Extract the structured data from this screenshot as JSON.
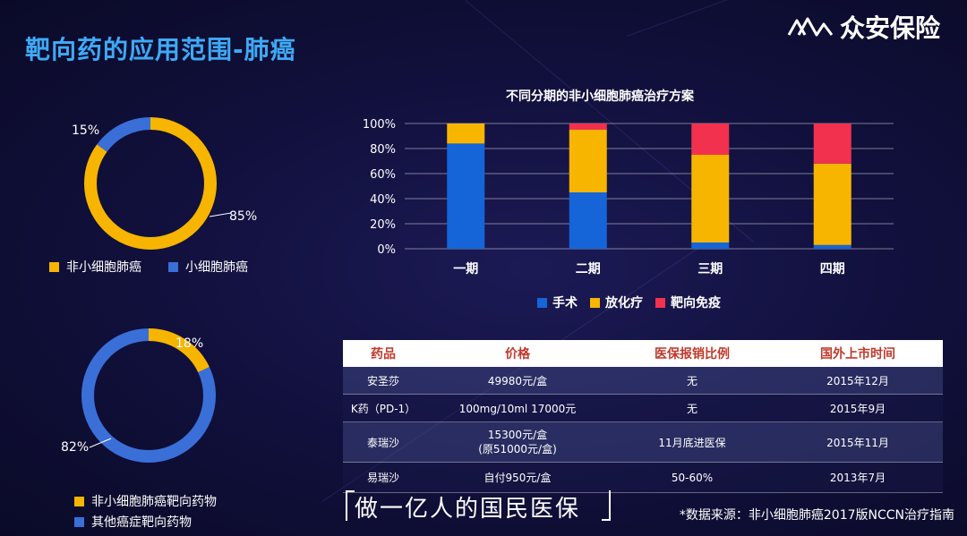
{
  "title": "靶向药的应用范围-肺癌",
  "brand": {
    "name": "众安保险",
    "logo_icon": "zhongan-logo-icon"
  },
  "donut_top": {
    "segments": [
      {
        "label": "非小细胞肺癌",
        "value": 85,
        "percent_text": "85%",
        "color": "#f7b500"
      },
      {
        "label": "小细胞肺癌",
        "value": 15,
        "percent_text": "15%",
        "color": "#3a6fd8"
      }
    ]
  },
  "donut_bottom": {
    "segments": [
      {
        "label": "非小细胞肺癌靶向药物",
        "value": 18,
        "percent_text": "18%",
        "color": "#f7b500"
      },
      {
        "label": "其他癌症靶向药物",
        "value": 82,
        "percent_text": "82%",
        "color": "#3a6fd8"
      }
    ]
  },
  "chart_data": {
    "type": "bar",
    "stacked": true,
    "title": "不同分期的非小细胞肺癌治疗方案",
    "categories": [
      "一期",
      "二期",
      "三期",
      "四期"
    ],
    "series": [
      {
        "name": "手术",
        "values": [
          84,
          45,
          5,
          3
        ],
        "color": "#1565d8"
      },
      {
        "name": "放化疗",
        "values": [
          16,
          50,
          70,
          65
        ],
        "color": "#f7b500"
      },
      {
        "name": "靶向免疫",
        "values": [
          0,
          5,
          25,
          32
        ],
        "color": "#f2314f"
      }
    ],
    "ylim": [
      0,
      100
    ],
    "yticks": [
      "0%",
      "20%",
      "40%",
      "60%",
      "80%",
      "100%"
    ],
    "grid": true,
    "legend": "bottom"
  },
  "table": {
    "headers": [
      "药品",
      "价格",
      "医保报销比例",
      "国外上市时间"
    ],
    "rows": [
      {
        "drug": "安圣莎",
        "price": [
          "49980元/盒"
        ],
        "reimbursement": "无",
        "launch": "2015年12月"
      },
      {
        "drug": "K药（PD-1）",
        "price": [
          "100mg/10ml 17000元"
        ],
        "reimbursement": "无",
        "launch": "2015年9月"
      },
      {
        "drug": "泰瑞沙",
        "price": [
          "15300元/盒",
          "(原51000元/盒)"
        ],
        "reimbursement": "11月底进医保",
        "launch": "2015年11月"
      },
      {
        "drug": "易瑞沙",
        "price": [
          "自付950元/盒"
        ],
        "reimbursement": "50-60%",
        "launch": "2013年7月"
      }
    ]
  },
  "slogan": "做一亿人的国民医保",
  "source_note": "*数据来源：非小细胞肺癌2017版NCCN治疗指南"
}
